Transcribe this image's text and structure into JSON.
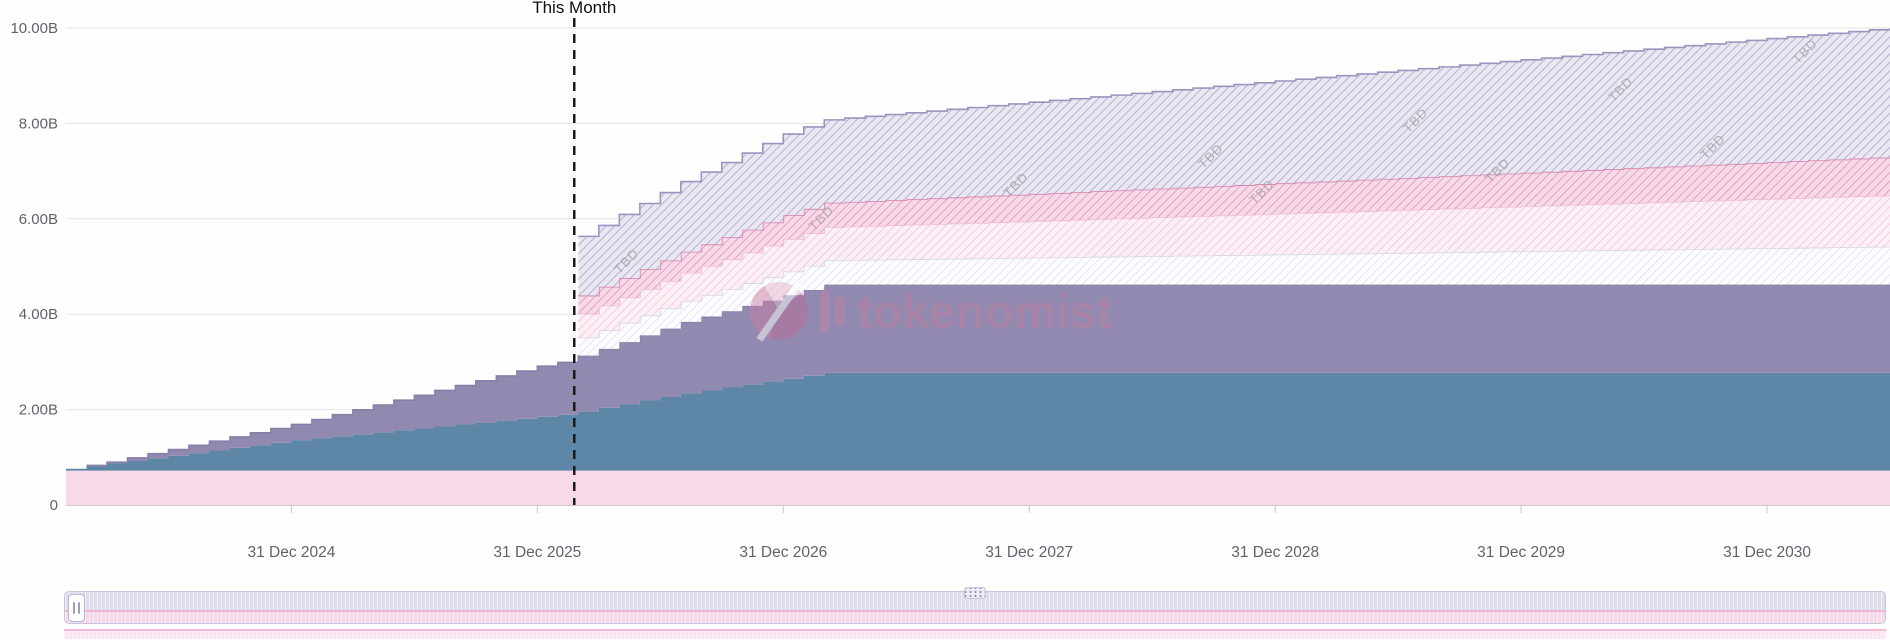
{
  "chart_data": {
    "type": "area",
    "variant": "stacked-step-vesting",
    "title": "",
    "x_start": "Feb 2024",
    "x_months": 89,
    "ylim": [
      0,
      10
    ],
    "y_unit": "B",
    "grid": "horizontal",
    "yticks": [
      {
        "v": 0,
        "label": "0"
      },
      {
        "v": 2,
        "label": "2.00B"
      },
      {
        "v": 4,
        "label": "4.00B"
      },
      {
        "v": 6,
        "label": "6.00B"
      },
      {
        "v": 8,
        "label": "8.00B"
      },
      {
        "v": 10,
        "label": "10.00B"
      }
    ],
    "xticks": [
      {
        "m": 11,
        "label": "31 Dec 2024"
      },
      {
        "m": 23,
        "label": "31 Dec 2025"
      },
      {
        "m": 35,
        "label": "31 Dec 2026"
      },
      {
        "m": 47,
        "label": "31 Dec 2027"
      },
      {
        "m": 59,
        "label": "31 Dec 2028"
      },
      {
        "m": 71,
        "label": "31 Dec 2029"
      },
      {
        "m": 83,
        "label": "31 Dec 2030"
      }
    ],
    "this_month": {
      "m": 24.8,
      "label": "This Month"
    },
    "series": [
      {
        "name": "allocation-pink-base",
        "style": "solid",
        "fill": "#f8d9e7",
        "edge": "none",
        "points": [
          [
            0,
            0.72
          ],
          [
            89,
            0.72
          ]
        ]
      },
      {
        "name": "allocation-blue",
        "style": "solid",
        "fill": "#5e86a7",
        "edge": "none",
        "points": [
          [
            0,
            0.04
          ],
          [
            11,
            0.64
          ],
          [
            23,
            1.13
          ],
          [
            24,
            1.17
          ],
          [
            30,
            1.62
          ],
          [
            37,
            2.05
          ],
          [
            89,
            2.05
          ]
        ]
      },
      {
        "name": "allocation-purple",
        "style": "solid",
        "fill": "#9189af",
        "edge": "#877fa9",
        "points": [
          [
            0,
            0.0
          ],
          [
            2,
            0.03
          ],
          [
            11,
            0.33
          ],
          [
            23,
            1.06
          ],
          [
            24,
            1.1
          ],
          [
            30,
            1.5
          ],
          [
            37,
            1.85
          ],
          [
            89,
            1.85
          ]
        ]
      },
      {
        "name": "tbd-white",
        "style": "hatch-white",
        "fill": "pattern",
        "edge": "#d6d6e2",
        "points": [
          [
            24,
            0
          ],
          [
            25,
            0.38
          ],
          [
            35,
            0.5
          ],
          [
            89,
            0.8
          ]
        ]
      },
      {
        "name": "tbd-light-pink",
        "style": "hatch-lightpink",
        "fill": "pattern",
        "edge": "#eebbd4",
        "points": [
          [
            24,
            0
          ],
          [
            25,
            0.5
          ],
          [
            35,
            0.68
          ],
          [
            89,
            1.08
          ]
        ]
      },
      {
        "name": "tbd-pink",
        "style": "hatch-pink",
        "fill": "pattern",
        "edge": "#d57fa9",
        "points": [
          [
            24,
            0
          ],
          [
            25,
            0.38
          ],
          [
            35,
            0.5
          ],
          [
            89,
            0.8
          ]
        ]
      },
      {
        "name": "tbd-lavender",
        "style": "hatch-lavender",
        "fill": "pattern",
        "edge": "#9a95bf",
        "points": [
          [
            24,
            0
          ],
          [
            25,
            1.24
          ],
          [
            35,
            1.7
          ],
          [
            89,
            2.7
          ]
        ]
      }
    ],
    "tbd_text": "TBD",
    "tbd_labels": [
      {
        "m": 27.5,
        "v": 5.05
      },
      {
        "m": 37.0,
        "v": 5.95
      },
      {
        "m": 46.5,
        "v": 6.65
      },
      {
        "m": 56.0,
        "v": 7.25
      },
      {
        "m": 58.5,
        "v": 6.5
      },
      {
        "m": 66.0,
        "v": 8.0
      },
      {
        "m": 70.0,
        "v": 6.95
      },
      {
        "m": 76.0,
        "v": 8.65
      },
      {
        "m": 80.5,
        "v": 7.45
      },
      {
        "m": 85.0,
        "v": 9.45
      }
    ],
    "colors": {
      "grid": "#e4e4e8",
      "axis_line": "#c9c9ce",
      "axis_text": "#5f636a",
      "this_month_line": "#1a1a1a",
      "tbd_label": "#a5a5a5"
    }
  },
  "watermark": {
    "text": "tokenomist"
  },
  "brush": {
    "role": "timeline-range-selector"
  }
}
